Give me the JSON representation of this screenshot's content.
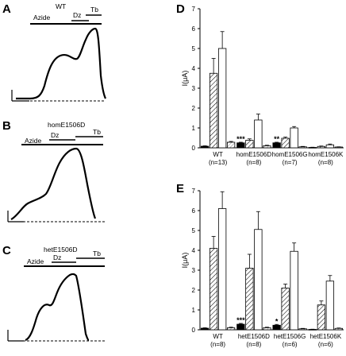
{
  "panel_letters": [
    "A",
    "B",
    "C",
    "D",
    "E"
  ],
  "traces": [
    {
      "id": "A",
      "title": "WT",
      "segments": [
        {
          "label": "Azide"
        },
        {
          "label": "Dz"
        },
        {
          "label": "Tb"
        }
      ]
    },
    {
      "id": "B",
      "title": "homE1506D",
      "segments": [
        {
          "label": "Azide"
        },
        {
          "label": "Dz"
        },
        {
          "label": "Tb"
        }
      ]
    },
    {
      "id": "C",
      "title": "hetE1506D",
      "segments": [
        {
          "label": "Azide"
        },
        {
          "label": "Dz"
        },
        {
          "label": "Tb"
        }
      ]
    }
  ],
  "chart_data": [
    {
      "panel": "D",
      "type": "bar",
      "ylabel": "I(μA)",
      "ylim": [
        0,
        7
      ],
      "yticks": [
        0,
        1,
        2,
        3,
        4,
        5,
        6,
        7
      ],
      "groups": [
        {
          "name": "WT",
          "n": "(n=13)",
          "values": [
            0.08,
            3.75,
            5.0,
            0.28
          ],
          "errors": [
            0.02,
            0.75,
            0.85,
            0.04
          ],
          "sig": ""
        },
        {
          "name": "homE1506D",
          "n": "(n=8)",
          "values": [
            0.25,
            0.38,
            1.4,
            0.1
          ],
          "errors": [
            0.03,
            0.07,
            0.3,
            0.03
          ],
          "sig": "***"
        },
        {
          "name": "homE1506G",
          "n": "(n=7)",
          "values": [
            0.25,
            0.48,
            1.0,
            0.05
          ],
          "errors": [
            0.03,
            0.06,
            0.07,
            0.02
          ],
          "sig": "**"
        },
        {
          "name": "homE1506K",
          "n": "(n=8)",
          "values": [
            0.02,
            0.07,
            0.15,
            0.04
          ],
          "errors": [
            0.01,
            0.02,
            0.04,
            0.01
          ],
          "sig": ""
        }
      ]
    },
    {
      "panel": "E",
      "type": "bar",
      "ylabel": "I(μA)",
      "ylim": [
        0,
        7
      ],
      "yticks": [
        0,
        1,
        2,
        3,
        4,
        5,
        6,
        7
      ],
      "groups": [
        {
          "name": "WT",
          "n": "(n=8)",
          "values": [
            0.08,
            4.1,
            6.1,
            0.1
          ],
          "errors": [
            0.02,
            0.6,
            0.85,
            0.03
          ],
          "sig": ""
        },
        {
          "name": "hetE1506D",
          "n": "(n=8)",
          "values": [
            0.28,
            3.1,
            5.05,
            0.1
          ],
          "errors": [
            0.04,
            0.7,
            0.9,
            0.03
          ],
          "sig": "***"
        },
        {
          "name": "hetE1506G",
          "n": "(n=6)",
          "values": [
            0.23,
            2.1,
            3.95,
            0.05
          ],
          "errors": [
            0.04,
            0.2,
            0.42,
            0.02
          ],
          "sig": "*"
        },
        {
          "name": "hetE1506K",
          "n": "(n=6)",
          "values": [
            0.02,
            1.25,
            2.45,
            0.07
          ],
          "errors": [
            0.01,
            0.2,
            0.28,
            0.02
          ],
          "sig": ""
        }
      ]
    }
  ]
}
